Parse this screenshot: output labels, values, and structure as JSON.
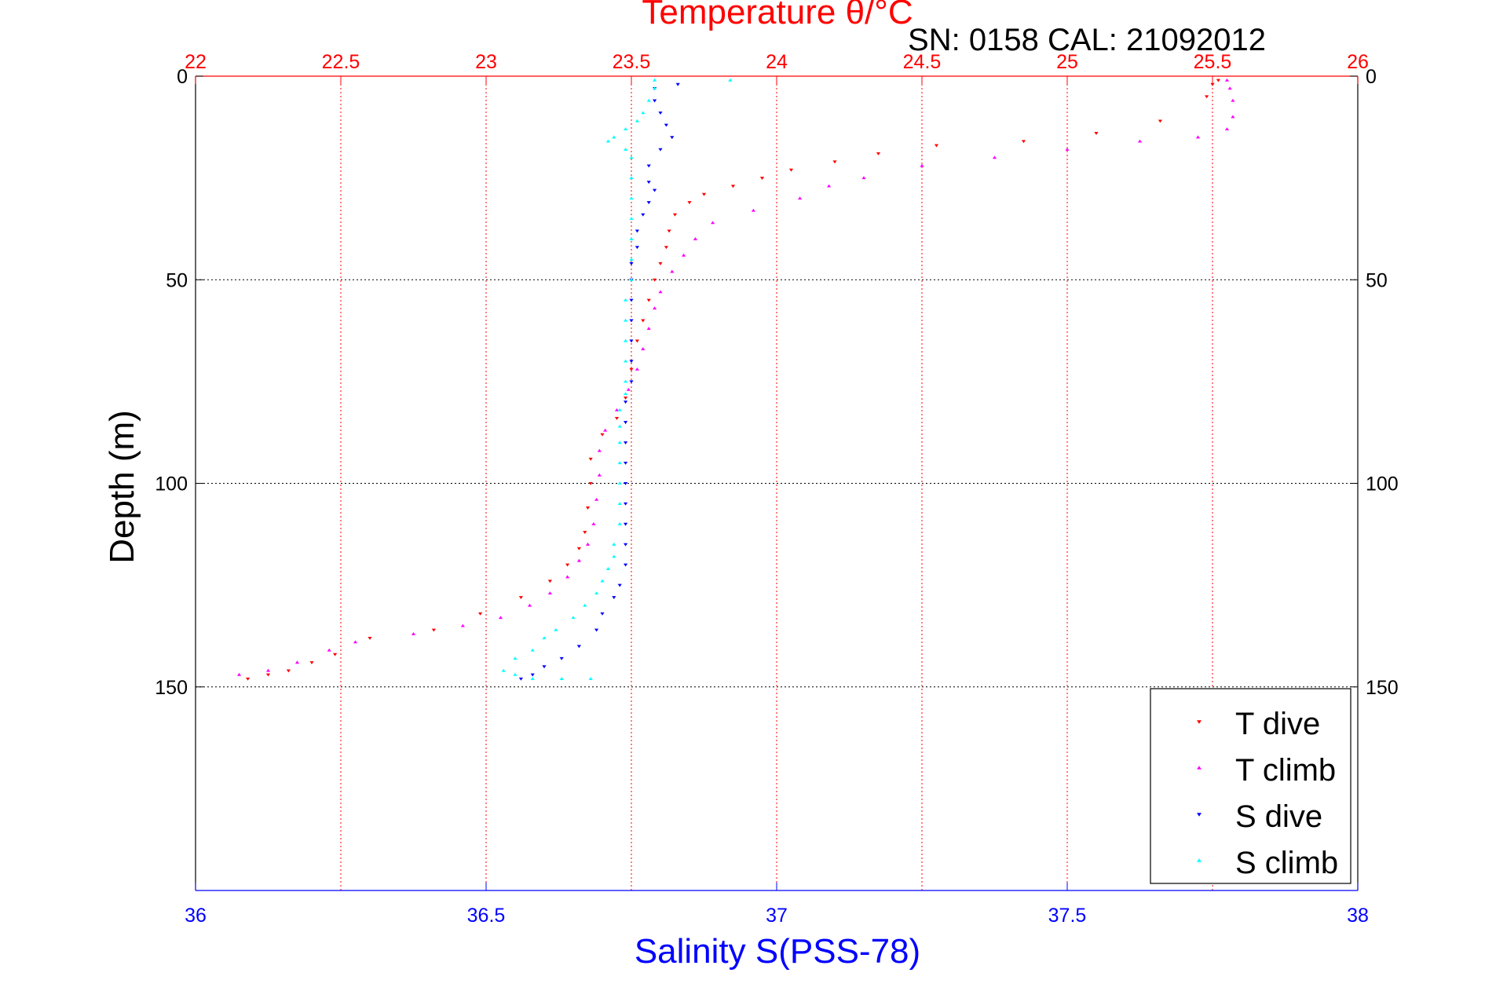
{
  "chart_data": {
    "type": "scatter",
    "title": "Temperature θ/°C",
    "subtitle": "SN: 0158  CAL: 21092012",
    "ylabel": "Depth (m)",
    "xlabel_bottom": "Salinity S(PSS-78)",
    "xlabel_top": "Temperature θ/°C",
    "ylim": [
      0,
      200
    ],
    "y_ticks": [
      0,
      50,
      100,
      150
    ],
    "x_bottom": {
      "label": "Salinity S(PSS-78)",
      "lim": [
        36,
        38
      ],
      "ticks": [
        36,
        36.5,
        37,
        37.5,
        38
      ],
      "tick_labels": [
        "36",
        "36.5",
        "37",
        "37.5",
        "38"
      ]
    },
    "x_top": {
      "label": "Temperature θ/°C",
      "lim": [
        22,
        26
      ],
      "ticks": [
        22,
        22.5,
        23,
        23.5,
        24,
        24.5,
        25,
        25.5,
        26
      ],
      "tick_labels": [
        "22",
        "22.5",
        "23",
        "23.5",
        "24",
        "24.5",
        "25",
        "25.5",
        "26"
      ]
    },
    "y_tick_labels": [
      "0",
      "50",
      "100",
      "150"
    ],
    "grid": true,
    "legend_position": "bottom-right",
    "colors": {
      "title": "#ff0000",
      "temperature_axis": "#ff0000",
      "salinity_axis": "#0000ff",
      "grid_vertical": "#ff0000",
      "grid_horizontal": "#000000",
      "frame": "#000000"
    },
    "series": [
      {
        "name": "T dive",
        "axis": "temperature",
        "marker": "triangle-down",
        "color": "#ff0000",
        "points": [
          [
            25.52,
            1
          ],
          [
            25.5,
            2
          ],
          [
            25.48,
            5
          ],
          [
            25.32,
            11
          ],
          [
            25.1,
            14
          ],
          [
            24.85,
            16
          ],
          [
            24.55,
            17
          ],
          [
            24.35,
            19
          ],
          [
            24.2,
            21
          ],
          [
            24.05,
            23
          ],
          [
            23.95,
            25
          ],
          [
            23.85,
            27
          ],
          [
            23.75,
            29
          ],
          [
            23.7,
            31
          ],
          [
            23.65,
            34
          ],
          [
            23.63,
            38
          ],
          [
            23.62,
            42
          ],
          [
            23.6,
            46
          ],
          [
            23.58,
            50
          ],
          [
            23.56,
            55
          ],
          [
            23.54,
            60
          ],
          [
            23.52,
            65
          ],
          [
            23.5,
            72
          ],
          [
            23.48,
            79
          ],
          [
            23.45,
            84
          ],
          [
            23.4,
            88
          ],
          [
            23.36,
            94
          ],
          [
            23.36,
            100
          ],
          [
            23.35,
            106
          ],
          [
            23.34,
            112
          ],
          [
            23.32,
            116
          ],
          [
            23.28,
            120
          ],
          [
            23.22,
            124
          ],
          [
            23.12,
            128
          ],
          [
            22.98,
            132
          ],
          [
            22.82,
            136
          ],
          [
            22.6,
            138
          ],
          [
            22.48,
            142
          ],
          [
            22.4,
            144
          ],
          [
            22.32,
            146
          ],
          [
            22.25,
            147
          ],
          [
            22.18,
            148
          ]
        ]
      },
      {
        "name": "T climb",
        "axis": "temperature",
        "marker": "triangle-up",
        "color": "#ff00ff",
        "points": [
          [
            22.15,
            147
          ],
          [
            22.25,
            146
          ],
          [
            22.35,
            144
          ],
          [
            22.46,
            141
          ],
          [
            22.55,
            139
          ],
          [
            22.75,
            137
          ],
          [
            22.92,
            135
          ],
          [
            23.05,
            133
          ],
          [
            23.15,
            130
          ],
          [
            23.22,
            127
          ],
          [
            23.28,
            123
          ],
          [
            23.32,
            119
          ],
          [
            23.35,
            115
          ],
          [
            23.37,
            110
          ],
          [
            23.38,
            104
          ],
          [
            23.39,
            98
          ],
          [
            23.39,
            92
          ],
          [
            23.41,
            87
          ],
          [
            23.45,
            82
          ],
          [
            23.49,
            77
          ],
          [
            23.52,
            72
          ],
          [
            23.54,
            67
          ],
          [
            23.56,
            62
          ],
          [
            23.58,
            57
          ],
          [
            23.6,
            53
          ],
          [
            23.64,
            48
          ],
          [
            23.68,
            44
          ],
          [
            23.72,
            40
          ],
          [
            23.78,
            36
          ],
          [
            23.92,
            33
          ],
          [
            24.08,
            30
          ],
          [
            24.18,
            27
          ],
          [
            24.3,
            25
          ],
          [
            24.5,
            22
          ],
          [
            24.75,
            20
          ],
          [
            25.0,
            18
          ],
          [
            25.25,
            16
          ],
          [
            25.45,
            15
          ],
          [
            25.55,
            13
          ],
          [
            25.57,
            10
          ],
          [
            25.57,
            6
          ],
          [
            25.56,
            3
          ],
          [
            25.55,
            1
          ]
        ]
      },
      {
        "name": "S dive",
        "axis": "salinity",
        "marker": "triangle-down",
        "color": "#0000ff",
        "points": [
          [
            36.83,
            2
          ],
          [
            36.79,
            3
          ],
          [
            36.79,
            6
          ],
          [
            36.8,
            9
          ],
          [
            36.81,
            12
          ],
          [
            36.82,
            15
          ],
          [
            36.8,
            18
          ],
          [
            36.78,
            22
          ],
          [
            36.78,
            26
          ],
          [
            36.79,
            28
          ],
          [
            36.78,
            31
          ],
          [
            36.77,
            34
          ],
          [
            36.76,
            38
          ],
          [
            36.76,
            42
          ],
          [
            36.75,
            46
          ],
          [
            36.75,
            50
          ],
          [
            36.75,
            55
          ],
          [
            36.75,
            60
          ],
          [
            36.75,
            65
          ],
          [
            36.75,
            70
          ],
          [
            36.75,
            75
          ],
          [
            36.74,
            80
          ],
          [
            36.74,
            85
          ],
          [
            36.74,
            90
          ],
          [
            36.74,
            95
          ],
          [
            36.74,
            100
          ],
          [
            36.74,
            105
          ],
          [
            36.74,
            110
          ],
          [
            36.74,
            115
          ],
          [
            36.74,
            120
          ],
          [
            36.73,
            125
          ],
          [
            36.72,
            128
          ],
          [
            36.7,
            132
          ],
          [
            36.69,
            136
          ],
          [
            36.66,
            140
          ],
          [
            36.63,
            143
          ],
          [
            36.6,
            145
          ],
          [
            36.58,
            147
          ],
          [
            36.56,
            148
          ]
        ]
      },
      {
        "name": "S climb",
        "axis": "salinity",
        "marker": "triangle-up",
        "color": "#00ffff",
        "points": [
          [
            36.92,
            1
          ],
          [
            36.79,
            1
          ],
          [
            36.79,
            3
          ],
          [
            36.78,
            6
          ],
          [
            36.77,
            9
          ],
          [
            36.76,
            11
          ],
          [
            36.74,
            13
          ],
          [
            36.72,
            15
          ],
          [
            36.71,
            16
          ],
          [
            36.74,
            18
          ],
          [
            36.75,
            20
          ],
          [
            36.75,
            25
          ],
          [
            36.75,
            30
          ],
          [
            36.75,
            35
          ],
          [
            36.75,
            40
          ],
          [
            36.75,
            45
          ],
          [
            36.75,
            50
          ],
          [
            36.74,
            55
          ],
          [
            36.74,
            60
          ],
          [
            36.74,
            65
          ],
          [
            36.74,
            70
          ],
          [
            36.74,
            75
          ],
          [
            36.74,
            78
          ],
          [
            36.73,
            82
          ],
          [
            36.73,
            86
          ],
          [
            36.73,
            90
          ],
          [
            36.73,
            95
          ],
          [
            36.73,
            100
          ],
          [
            36.73,
            105
          ],
          [
            36.73,
            110
          ],
          [
            36.72,
            115
          ],
          [
            36.72,
            118
          ],
          [
            36.71,
            121
          ],
          [
            36.7,
            124
          ],
          [
            36.69,
            127
          ],
          [
            36.67,
            130
          ],
          [
            36.65,
            133
          ],
          [
            36.62,
            136
          ],
          [
            36.6,
            138
          ],
          [
            36.58,
            141
          ],
          [
            36.55,
            143
          ],
          [
            36.53,
            146
          ],
          [
            36.55,
            147
          ],
          [
            36.58,
            148
          ],
          [
            36.63,
            148
          ],
          [
            36.68,
            148
          ]
        ]
      }
    ]
  }
}
